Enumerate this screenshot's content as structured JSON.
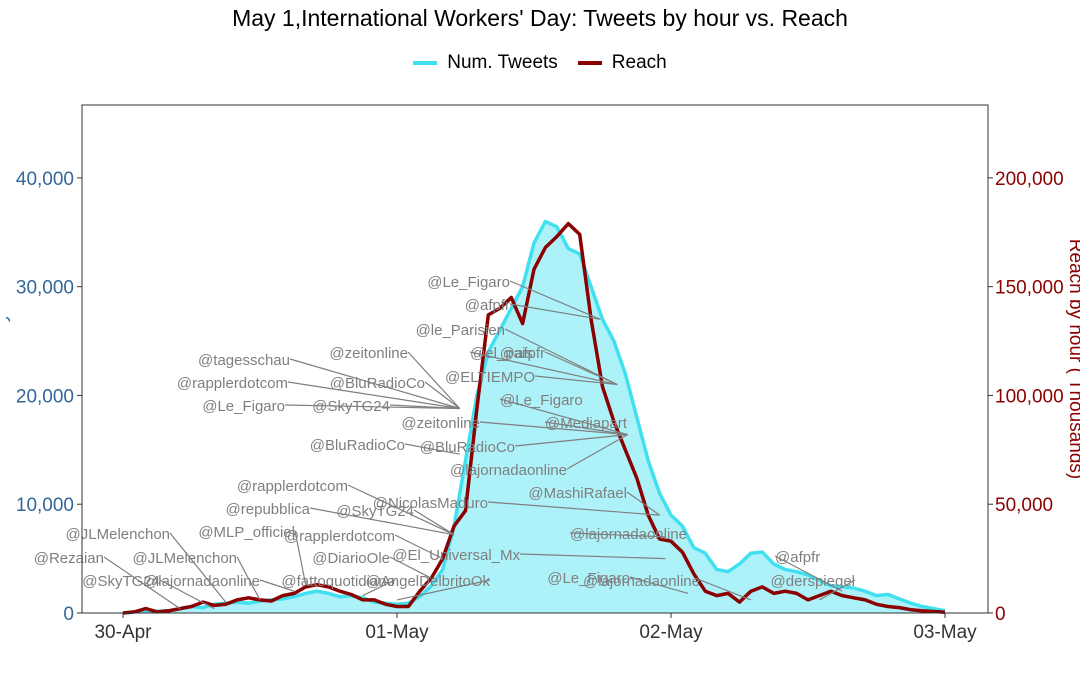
{
  "chart_data": {
    "type": "area",
    "title": "May 1,International Workers' Day: Tweets by hour vs. Reach",
    "ylabel": "Num. Tweets by hour",
    "ylabel_right": "Reach by hour ( Thousands)",
    "x_tick_labels": [
      "30-Apr",
      "01-May",
      "02-May",
      "03-May"
    ],
    "x_unit": "hours since 30-Apr 00:00",
    "xlim": [
      0,
      72
    ],
    "ylim": [
      0,
      46700
    ],
    "ylim_right": [
      0,
      233500
    ],
    "y_ticks": [
      0,
      10000,
      20000,
      30000,
      40000
    ],
    "y_tick_labels": [
      "0",
      "10,000",
      "20,000",
      "30,000",
      "40,000"
    ],
    "y_ticks_right": [
      0,
      50000,
      100000,
      150000,
      200000
    ],
    "y_tick_labels_right": [
      "0",
      "50,000",
      "100,000",
      "150,000",
      "200,000"
    ],
    "grid": false,
    "legend_position": "top",
    "colors": {
      "tweets_line": "#40e0f0",
      "tweets_fill": "#adf2f9",
      "reach_line": "#8b0000",
      "axis_left": "#336699",
      "axis_right": "#8b0000",
      "annotation": "#7f7f7f"
    },
    "series": [
      {
        "name": "Num. Tweets",
        "axis": "left",
        "x": [
          0,
          1,
          2,
          3,
          4,
          5,
          6,
          7,
          8,
          9,
          10,
          11,
          12,
          13,
          14,
          15,
          16,
          17,
          18,
          19,
          20,
          21,
          22,
          23,
          24,
          25,
          26,
          27,
          28,
          29,
          30,
          31,
          32,
          33,
          34,
          35,
          36,
          37,
          38,
          39,
          40,
          41,
          42,
          43,
          44,
          45,
          46,
          47,
          48,
          49,
          50,
          51,
          52,
          53,
          54,
          55,
          56,
          57,
          58,
          59,
          60,
          61,
          62,
          63,
          64,
          65,
          66,
          67,
          68,
          69,
          70,
          71,
          72
        ],
        "values": [
          0,
          100,
          150,
          150,
          200,
          400,
          600,
          500,
          800,
          900,
          1000,
          900,
          1100,
          1200,
          1300,
          1500,
          1800,
          2000,
          1800,
          1500,
          1600,
          1400,
          1000,
          900,
          800,
          900,
          1500,
          2500,
          4000,
          8000,
          14000,
          20000,
          24000,
          26000,
          28000,
          30000,
          34000,
          36000,
          35500,
          33500,
          33000,
          30000,
          27000,
          25000,
          22000,
          18000,
          14000,
          11000,
          9000,
          8000,
          6000,
          5500,
          4000,
          3800,
          4500,
          5500,
          5600,
          4500,
          4000,
          3800,
          3500,
          3000,
          2500,
          2400,
          2300,
          2000,
          1600,
          1700,
          1300,
          900,
          600,
          400,
          200
        ]
      },
      {
        "name": "Reach",
        "axis": "right",
        "x": [
          0,
          1,
          2,
          3,
          4,
          5,
          6,
          7,
          8,
          9,
          10,
          11,
          12,
          13,
          14,
          15,
          16,
          17,
          18,
          19,
          20,
          21,
          22,
          23,
          24,
          25,
          26,
          27,
          28,
          29,
          30,
          31,
          32,
          33,
          34,
          35,
          36,
          37,
          38,
          39,
          40,
          41,
          42,
          43,
          44,
          45,
          46,
          47,
          48,
          49,
          50,
          51,
          52,
          53,
          54,
          55,
          56,
          57,
          58,
          59,
          60,
          61,
          62,
          63,
          64,
          65,
          66,
          67,
          68,
          69,
          70,
          71,
          72
        ],
        "values": [
          0,
          500,
          2000,
          500,
          1000,
          2000,
          3000,
          5000,
          3500,
          4000,
          6000,
          7000,
          6000,
          5500,
          8000,
          9000,
          12000,
          13000,
          12000,
          10000,
          8500,
          6000,
          6000,
          4000,
          3000,
          3000,
          10000,
          16000,
          25000,
          40000,
          47000,
          94000,
          137000,
          140000,
          145000,
          133000,
          158000,
          168000,
          173000,
          179000,
          174000,
          135000,
          104000,
          88000,
          75000,
          62000,
          45000,
          34000,
          33000,
          28000,
          18000,
          10000,
          8000,
          9000,
          5000,
          10000,
          12000,
          9000,
          10000,
          9000,
          6000,
          8000,
          10000,
          8000,
          7000,
          6000,
          4000,
          3000,
          2500,
          1500,
          1000,
          700,
          300
        ]
      }
    ],
    "annotations": [
      {
        "label": "@Le_Figaro",
        "x": 41.8,
        "y_right": 135000
      },
      {
        "label": "@afpfr",
        "x": 41.8,
        "y_right": 135000
      },
      {
        "label": "@le_Parisien",
        "x": 43.3,
        "y_right": 105000
      },
      {
        "label": "@afpfr",
        "x": 43.3,
        "y_right": 105000
      },
      {
        "label": "@el_pais",
        "x": 43.3,
        "y_right": 105000
      },
      {
        "label": "@ELTIEMPO",
        "x": 43.3,
        "y_right": 105000
      },
      {
        "label": "@Le_Figaro",
        "x": 44.2,
        "y_right": 82000
      },
      {
        "label": "@Mediapart",
        "x": 44.2,
        "y_right": 82000
      },
      {
        "label": "@tagesschau",
        "x": 29.5,
        "y_right": 94000
      },
      {
        "label": "@zeitonline",
        "x": 29.5,
        "y_right": 94000
      },
      {
        "label": "@rapplerdotcom",
        "x": 29.5,
        "y_right": 94000
      },
      {
        "label": "@BluRadioCo",
        "x": 29.5,
        "y_right": 94000
      },
      {
        "label": "@Le_Figaro",
        "x": 29.5,
        "y_right": 94000
      },
      {
        "label": "@SkyTG24",
        "x": 29.5,
        "y_right": 94000
      },
      {
        "label": "@zeitonline",
        "x": 44.2,
        "y_right": 82000
      },
      {
        "label": "@BluRadioCo",
        "x": 29.5,
        "y_right": 73000
      },
      {
        "label": "@BluRadioCo",
        "x": 44.2,
        "y_right": 82000
      },
      {
        "label": "@lajornadaonline",
        "x": 44.2,
        "y_right": 82000
      },
      {
        "label": "@MashiRafael",
        "x": 47.0,
        "y_right": 45000
      },
      {
        "label": "@rapplerdotcom",
        "x": 29.0,
        "y_right": 36000
      },
      {
        "label": "@NicolasMaduro",
        "x": 47.0,
        "y_right": 45000
      },
      {
        "label": "@repubblica",
        "x": 29.0,
        "y_right": 36000
      },
      {
        "label": "@SkyTG24",
        "x": 29.0,
        "y_right": 36000
      },
      {
        "label": "@JLMelenchon",
        "x": 9.0,
        "y_right": 5000
      },
      {
        "label": "@MLP_officiel",
        "x": 16.0,
        "y_right": 13000
      },
      {
        "label": "@rapplerdotcom",
        "x": 28.0,
        "y_right": 25000
      },
      {
        "label": "@lajornadaonline",
        "x": 47.5,
        "y_right": 35000
      },
      {
        "label": "@Rezaian",
        "x": 5.0,
        "y_right": 2000
      },
      {
        "label": "@JLMelenchon",
        "x": 12.0,
        "y_right": 6000
      },
      {
        "label": "@DiarioOle",
        "x": 27.0,
        "y_right": 16000
      },
      {
        "label": "@El_Universal_Mx",
        "x": 47.5,
        "y_right": 25000
      },
      {
        "label": "@afpfr",
        "x": 63.0,
        "y_right": 10000
      },
      {
        "label": "@SkyTG24",
        "x": 8.0,
        "y_right": 2000
      },
      {
        "label": "@lajornadaonline",
        "x": 15.0,
        "y_right": 10000
      },
      {
        "label": "@fattoquotidiano",
        "x": 21.0,
        "y_right": 8000
      },
      {
        "label": "@AngelDelbritoOk",
        "x": 24.0,
        "y_right": 6000
      },
      {
        "label": "@Le_Figaro",
        "x": 49.5,
        "y_right": 9000
      },
      {
        "label": "@lajornadaonline",
        "x": 55.0,
        "y_right": 6000
      },
      {
        "label": "@derspiegel",
        "x": 61.0,
        "y_right": 6000
      }
    ]
  }
}
